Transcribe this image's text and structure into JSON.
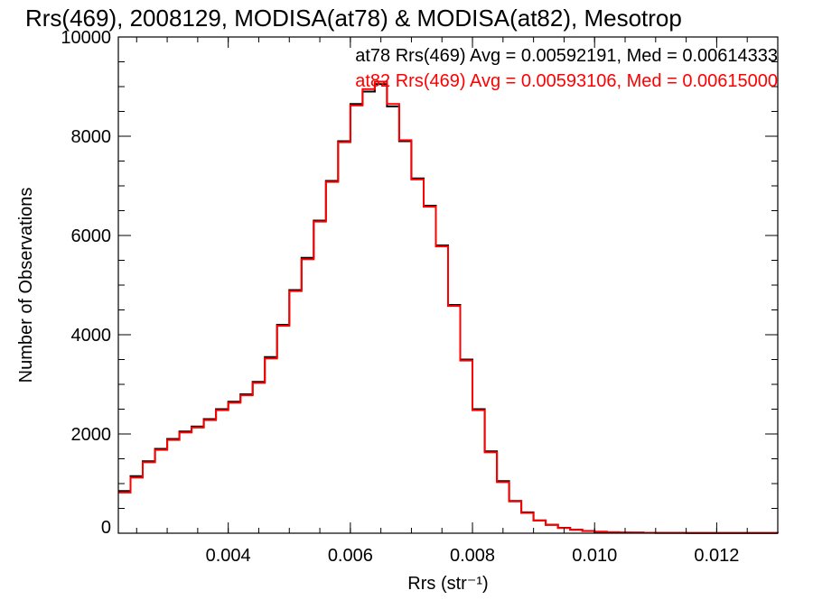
{
  "chart_data": {
    "type": "line",
    "step": true,
    "title": "Rrs(469), 2008129, MODISA(at78) & MODISA(at82), Mesotrop",
    "xlabel": "Rrs (str⁻¹)",
    "ylabel": "Number of Observations",
    "xlim": [
      0.0022,
      0.013
    ],
    "ylim": [
      0,
      10000
    ],
    "x_ticks": [
      0.004,
      0.006,
      0.008,
      0.01,
      0.012
    ],
    "x_tick_labels": [
      "0.004",
      "0.006",
      "0.008",
      "0.010",
      "0.012"
    ],
    "y_ticks": [
      0,
      2000,
      4000,
      6000,
      8000,
      10000
    ],
    "y_tick_labels": [
      "0",
      "2000",
      "4000",
      "6000",
      "8000",
      "10000"
    ],
    "grid": false,
    "legend_position": "top-right",
    "annotations": [
      "at78 Rrs(469) Avg = 0.00592191, Med = 0.00614333",
      "at82 Rrs(469) Avg = 0.00593106, Med = 0.00615000"
    ],
    "x": [
      0.0022,
      0.0024,
      0.0026,
      0.0028,
      0.003,
      0.0032,
      0.0034,
      0.0036,
      0.0038,
      0.004,
      0.0042,
      0.0044,
      0.0046,
      0.0048,
      0.005,
      0.0052,
      0.0054,
      0.0056,
      0.0058,
      0.006,
      0.0062,
      0.0064,
      0.0066,
      0.0068,
      0.007,
      0.0072,
      0.0074,
      0.0076,
      0.0078,
      0.008,
      0.0082,
      0.0084,
      0.0086,
      0.0088,
      0.009,
      0.0092,
      0.0094,
      0.0096,
      0.0098,
      0.01,
      0.0102,
      0.0104,
      0.0106,
      0.0108,
      0.011,
      0.0115,
      0.012,
      0.0125,
      0.013
    ],
    "series": [
      {
        "name": "at78",
        "color": "#000000",
        "values": [
          850,
          1150,
          1450,
          1700,
          1900,
          2050,
          2150,
          2300,
          2500,
          2650,
          2800,
          3050,
          3550,
          4200,
          4900,
          5550,
          6300,
          7100,
          7900,
          8650,
          8900,
          9050,
          8600,
          7900,
          7150,
          6600,
          5800,
          4600,
          3500,
          2500,
          1650,
          1050,
          650,
          420,
          260,
          170,
          110,
          70,
          45,
          30,
          20,
          15,
          12,
          10,
          8,
          6,
          5,
          4,
          3
        ]
      },
      {
        "name": "at82",
        "color": "#ff0000",
        "values": [
          820,
          1120,
          1430,
          1680,
          1880,
          2030,
          2130,
          2280,
          2480,
          2630,
          2780,
          3030,
          3520,
          4180,
          4880,
          5520,
          6280,
          7080,
          7880,
          8620,
          8950,
          9100,
          8650,
          7920,
          7130,
          6580,
          5780,
          4580,
          3480,
          2480,
          1630,
          1030,
          640,
          410,
          255,
          165,
          105,
          68,
          44,
          29,
          19,
          14,
          11,
          9,
          7,
          5,
          4,
          3,
          2
        ]
      }
    ]
  }
}
